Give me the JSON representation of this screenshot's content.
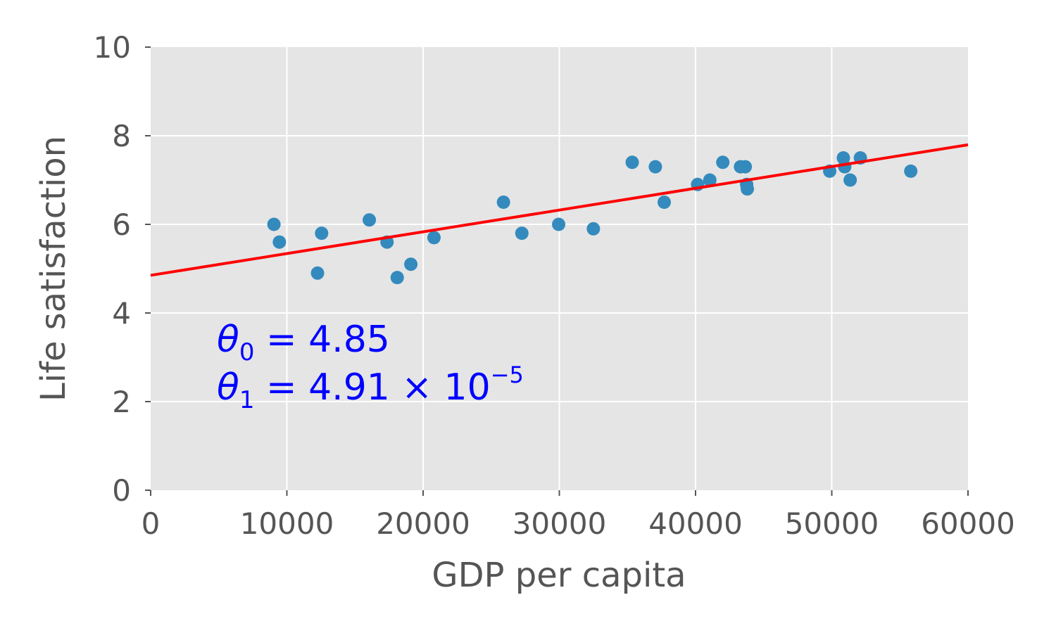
{
  "chart_data": {
    "type": "scatter",
    "title": "",
    "xlabel": "GDP per capita",
    "ylabel": "Life satisfaction",
    "xlim": [
      0,
      60000
    ],
    "ylim": [
      0,
      10
    ],
    "xticks": [
      0,
      10000,
      20000,
      30000,
      40000,
      50000,
      60000
    ],
    "yticks": [
      0,
      2,
      4,
      6,
      8,
      10
    ],
    "xtick_labels": [
      "0",
      "10000",
      "20000",
      "30000",
      "40000",
      "50000",
      "60000"
    ],
    "ytick_labels": [
      "0",
      "2",
      "4",
      "6",
      "8",
      "10"
    ],
    "grid": true,
    "background": "#e5e5e5",
    "point_color": "#348abd",
    "line_color": "#ff0000",
    "points": [
      {
        "x": 9050,
        "y": 6.0
      },
      {
        "x": 9450,
        "y": 5.6
      },
      {
        "x": 12250,
        "y": 4.9
      },
      {
        "x": 12550,
        "y": 5.8
      },
      {
        "x": 16050,
        "y": 6.1
      },
      {
        "x": 17350,
        "y": 5.6
      },
      {
        "x": 18100,
        "y": 4.8
      },
      {
        "x": 19100,
        "y": 5.1
      },
      {
        "x": 20800,
        "y": 5.7
      },
      {
        "x": 25900,
        "y": 6.5
      },
      {
        "x": 27250,
        "y": 5.8
      },
      {
        "x": 29950,
        "y": 6.0
      },
      {
        "x": 32500,
        "y": 5.9
      },
      {
        "x": 35350,
        "y": 7.4
      },
      {
        "x": 37050,
        "y": 7.3
      },
      {
        "x": 37700,
        "y": 6.5
      },
      {
        "x": 40150,
        "y": 6.9
      },
      {
        "x": 41050,
        "y": 7.0
      },
      {
        "x": 42000,
        "y": 7.4
      },
      {
        "x": 43300,
        "y": 7.3
      },
      {
        "x": 43650,
        "y": 7.3
      },
      {
        "x": 43750,
        "y": 6.9
      },
      {
        "x": 43800,
        "y": 6.8
      },
      {
        "x": 49850,
        "y": 7.2
      },
      {
        "x": 50850,
        "y": 7.5
      },
      {
        "x": 50950,
        "y": 7.3
      },
      {
        "x": 51350,
        "y": 7.0
      },
      {
        "x": 52100,
        "y": 7.5
      },
      {
        "x": 55800,
        "y": 7.2
      }
    ],
    "fit_line": {
      "intercept": 4.85,
      "slope": 4.91e-05
    },
    "annotations": {
      "theta0_sym": "θ",
      "theta0_sub": "0",
      "theta0_rest": " = 4.85",
      "theta1_sym": "θ",
      "theta1_sub": "1",
      "theta1_rest": " = 4.91 × 10",
      "theta1_sup": "−5"
    }
  }
}
